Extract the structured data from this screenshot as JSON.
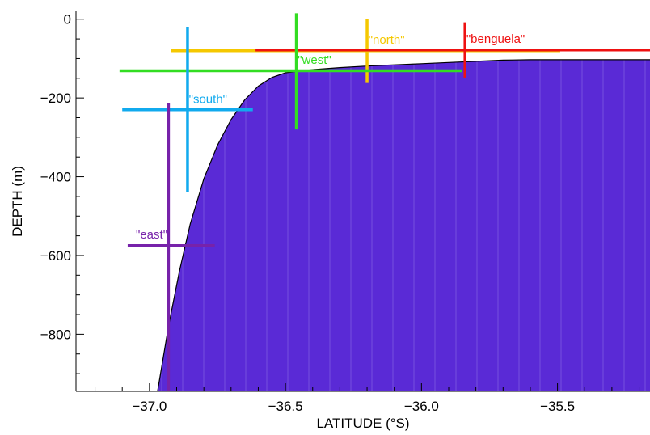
{
  "chart_data": {
    "type": "area",
    "title": "",
    "xlabel": "LATITUDE (°S)",
    "ylabel": "DEPTH (m)",
    "xlim": [
      -37.27,
      -35.16
    ],
    "ylim": [
      -945,
      20
    ],
    "xticks": [
      {
        "value": -37.0,
        "label": "−37.0"
      },
      {
        "value": -36.5,
        "label": "−36.5"
      },
      {
        "value": -36.0,
        "label": "−36.0"
      },
      {
        "value": -35.5,
        "label": "−35.5"
      }
    ],
    "yticks": [
      {
        "value": 0,
        "label": "0"
      },
      {
        "value": -200,
        "label": "−200"
      },
      {
        "value": -400,
        "label": "−400"
      },
      {
        "value": -600,
        "label": "−600"
      },
      {
        "value": -800,
        "label": "−800"
      }
    ],
    "bathymetry": {
      "fill_color": "#5a2ad6",
      "outline_color": "#000000",
      "points": [
        {
          "x": -36.97,
          "y": -945
        },
        {
          "x": -36.93,
          "y": -780
        },
        {
          "x": -36.89,
          "y": -640
        },
        {
          "x": -36.85,
          "y": -520
        },
        {
          "x": -36.8,
          "y": -405
        },
        {
          "x": -36.75,
          "y": -320
        },
        {
          "x": -36.7,
          "y": -255
        },
        {
          "x": -36.65,
          "y": -205
        },
        {
          "x": -36.6,
          "y": -170
        },
        {
          "x": -36.55,
          "y": -148
        },
        {
          "x": -36.5,
          "y": -136
        },
        {
          "x": -36.4,
          "y": -128
        },
        {
          "x": -36.3,
          "y": -123
        },
        {
          "x": -36.2,
          "y": -119
        },
        {
          "x": -36.1,
          "y": -116
        },
        {
          "x": -36.0,
          "y": -113
        },
        {
          "x": -35.9,
          "y": -110
        },
        {
          "x": -35.8,
          "y": -107
        },
        {
          "x": -35.7,
          "y": -104
        },
        {
          "x": -35.6,
          "y": -103
        },
        {
          "x": -35.5,
          "y": -103
        },
        {
          "x": -35.4,
          "y": -103
        },
        {
          "x": -35.3,
          "y": -103
        },
        {
          "x": -35.16,
          "y": -103
        }
      ]
    },
    "stations": [
      {
        "label": "\"north\"",
        "color": "#f5c800",
        "hline": {
          "y": -80,
          "x1": -36.92,
          "x2": -35.49
        },
        "vline": {
          "x": -36.2,
          "y1": 0,
          "y2": -162
        },
        "label_at": {
          "x": -36.195,
          "y": -62
        }
      },
      {
        "label": "\"benguela\"",
        "color": "#ee1111",
        "hline": {
          "y": -78,
          "x1": -36.61,
          "x2": -35.16
        },
        "vline": {
          "x": -35.84,
          "y1": -8,
          "y2": -148
        },
        "label_at": {
          "x": -35.835,
          "y": -60
        }
      },
      {
        "label": "\"west\"",
        "color": "#33dd22",
        "hline": {
          "y": -131,
          "x1": -37.11,
          "x2": -35.85
        },
        "vline": {
          "x": -36.46,
          "y1": 15,
          "y2": -280
        },
        "label_at": {
          "x": -36.455,
          "y": -113
        }
      },
      {
        "label": "\"south\"",
        "color": "#11aaee",
        "hline": {
          "y": -230,
          "x1": -37.1,
          "x2": -36.62
        },
        "vline": {
          "x": -36.86,
          "y1": -20,
          "y2": -440
        },
        "label_at": {
          "x": -36.855,
          "y": -213
        }
      },
      {
        "label": "\"east\"",
        "color": "#7722aa",
        "hline": {
          "y": -575,
          "x1": -37.08,
          "x2": -36.76
        },
        "vline": {
          "x": -36.93,
          "y1": -212,
          "y2": -945
        },
        "label_at": {
          "x": -37.05,
          "y": -557
        }
      }
    ]
  }
}
